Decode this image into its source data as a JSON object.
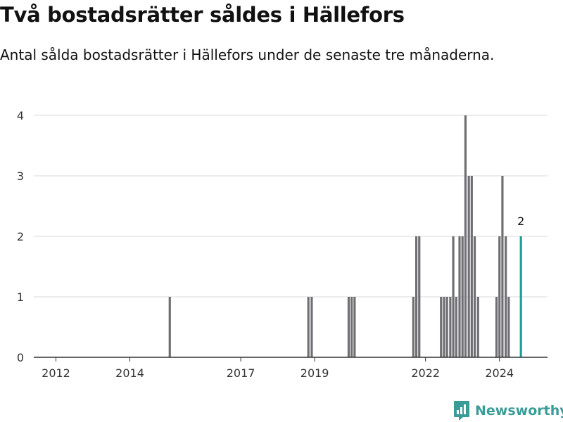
{
  "header": {
    "title": "Två bostadsrätter såldes i Hällefors",
    "subtitle": "Antal sålda bostadsrätter i Hällefors under de senaste tre månaderna."
  },
  "brand": {
    "name": "Newsworthy",
    "logo_icon": "newsworthy-chart-logo-icon"
  },
  "colors": {
    "bar": "#6e6e73",
    "highlight": "#1e9e96",
    "grid": "#d9d9d9",
    "axis": "#333333",
    "brand": "#3a9c97"
  },
  "chart_data": {
    "type": "bar",
    "title": "Två bostadsrätter såldes i Hällefors",
    "subtitle": "Antal sålda bostadsrätter i Hällefors under de senaste tre månaderna.",
    "xlabel": "",
    "ylabel": "",
    "ylim": [
      0,
      4
    ],
    "xlim": [
      2011.4,
      2025.3
    ],
    "y_ticks": [
      0,
      1,
      2,
      3,
      4
    ],
    "x_ticks": [
      2012,
      2014,
      2017,
      2019,
      2022,
      2024
    ],
    "grid": true,
    "legend": "none",
    "bar_width_years": 0.0833,
    "x": [
      2015.08,
      2018.83,
      2018.92,
      2019.92,
      2020.0,
      2020.08,
      2021.67,
      2021.75,
      2021.83,
      2022.42,
      2022.5,
      2022.58,
      2022.67,
      2022.75,
      2022.83,
      2022.92,
      2023.0,
      2023.08,
      2023.17,
      2023.25,
      2023.33,
      2023.42,
      2023.5,
      2023.92,
      2024.0,
      2024.08,
      2024.17,
      2024.25,
      2024.58
    ],
    "values": [
      1,
      1,
      1,
      1,
      1,
      1,
      1,
      2,
      2,
      1,
      1,
      1,
      1,
      2,
      1,
      2,
      2,
      4,
      3,
      3,
      2,
      1,
      0,
      1,
      2,
      3,
      2,
      1,
      2
    ],
    "highlight_index": 28,
    "annotations": [
      {
        "x": 2024.58,
        "y": 2,
        "text": "2"
      }
    ]
  }
}
